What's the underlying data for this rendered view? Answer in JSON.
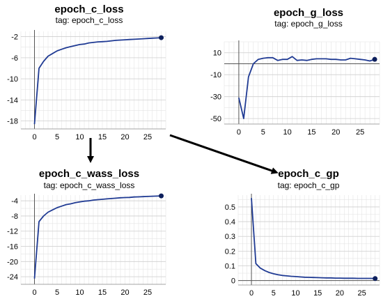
{
  "chart_data": [
    {
      "type": "line",
      "title": "epoch_c_loss",
      "subtitle": "tag: epoch_c_loss",
      "xlim": [
        -3,
        29
      ],
      "ylim": [
        -19.5,
        -1
      ],
      "xticks": [
        0,
        5,
        10,
        15,
        20,
        25
      ],
      "yticks": [
        -18,
        -14,
        -10,
        -6,
        -2
      ],
      "grid": true,
      "line_color": "#1f3a93",
      "series": [
        {
          "x": [
            0,
            1,
            2,
            3,
            4,
            5,
            6,
            7,
            8,
            9,
            10,
            11,
            12,
            13,
            14,
            15,
            16,
            17,
            18,
            19,
            20,
            21,
            22,
            23,
            24,
            25,
            26,
            27,
            28
          ],
          "y": [
            -18.6,
            -8.0,
            -6.7,
            -5.7,
            -5.2,
            -4.7,
            -4.4,
            -4.1,
            -3.9,
            -3.7,
            -3.5,
            -3.4,
            -3.2,
            -3.1,
            -3.0,
            -2.95,
            -2.9,
            -2.8,
            -2.7,
            -2.65,
            -2.6,
            -2.55,
            -2.5,
            -2.45,
            -2.4,
            -2.35,
            -2.3,
            -2.25,
            -2.2
          ]
        }
      ]
    },
    {
      "type": "line",
      "title": "epoch_g_loss",
      "subtitle": "tag: epoch_g_loss",
      "xlim": [
        -3,
        29
      ],
      "ylim": [
        -55,
        20
      ],
      "xticks": [
        0,
        5,
        10,
        15,
        20,
        25
      ],
      "yticks": [
        -50,
        -30,
        -10,
        10
      ],
      "grid": true,
      "line_color": "#1f3a93",
      "series": [
        {
          "x": [
            0,
            1,
            2,
            3,
            4,
            5,
            6,
            7,
            8,
            9,
            10,
            11,
            12,
            13,
            14,
            15,
            16,
            17,
            18,
            19,
            20,
            21,
            22,
            23,
            24,
            25,
            26,
            27,
            28
          ],
          "y": [
            -31,
            -50,
            -12,
            0,
            4,
            5,
            5.5,
            5.5,
            3,
            4,
            4,
            6.5,
            3,
            3.5,
            3,
            4,
            4.5,
            4.5,
            4.5,
            4,
            4,
            3.5,
            3.5,
            5,
            4.5,
            4,
            3.5,
            2.5,
            4
          ]
        }
      ]
    },
    {
      "type": "line",
      "title": "epoch_c_wass_loss",
      "subtitle": "tag: epoch_c_wass_loss",
      "xlim": [
        -3,
        29
      ],
      "ylim": [
        -26,
        -2.5
      ],
      "xticks": [
        0,
        5,
        10,
        15,
        20,
        25
      ],
      "yticks": [
        -24,
        -20,
        -16,
        -12,
        -8,
        -4
      ],
      "grid": true,
      "line_color": "#1f3a93",
      "series": [
        {
          "x": [
            0,
            1,
            2,
            3,
            4,
            5,
            6,
            7,
            8,
            9,
            10,
            11,
            12,
            13,
            14,
            15,
            16,
            17,
            18,
            19,
            20,
            21,
            22,
            23,
            24,
            25,
            26,
            27,
            28
          ],
          "y": [
            -24.5,
            -9.5,
            -8.0,
            -7.0,
            -6.4,
            -5.8,
            -5.4,
            -5.0,
            -4.8,
            -4.5,
            -4.3,
            -4.1,
            -4.0,
            -3.8,
            -3.7,
            -3.6,
            -3.5,
            -3.4,
            -3.3,
            -3.2,
            -3.15,
            -3.1,
            -3.0,
            -2.95,
            -2.9,
            -2.85,
            -2.8,
            -2.75,
            -2.7
          ]
        }
      ]
    },
    {
      "type": "line",
      "title": "epoch_c_gp",
      "subtitle": "tag: epoch_c_gp",
      "xlim": [
        -3,
        29
      ],
      "ylim": [
        -0.03,
        0.58
      ],
      "xticks": [
        0,
        5,
        10,
        15,
        20,
        25
      ],
      "yticks": [
        0,
        0.1,
        0.2,
        0.3,
        0.4,
        0.5
      ],
      "grid": true,
      "line_color": "#1f3a93",
      "series": [
        {
          "x": [
            0,
            1,
            2,
            3,
            4,
            5,
            6,
            7,
            8,
            9,
            10,
            11,
            12,
            13,
            14,
            15,
            16,
            17,
            18,
            19,
            20,
            21,
            22,
            23,
            24,
            25,
            26,
            27,
            28
          ],
          "y": [
            0.56,
            0.115,
            0.085,
            0.068,
            0.055,
            0.046,
            0.04,
            0.035,
            0.032,
            0.029,
            0.027,
            0.025,
            0.023,
            0.022,
            0.021,
            0.02,
            0.019,
            0.018,
            0.018,
            0.017,
            0.017,
            0.016,
            0.016,
            0.016,
            0.015,
            0.015,
            0.015,
            0.015,
            0.014
          ]
        }
      ]
    }
  ]
}
